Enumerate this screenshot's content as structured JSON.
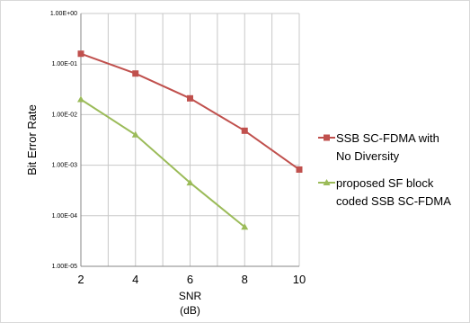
{
  "chart_data": {
    "type": "line",
    "title": "",
    "xlabel_lines": [
      "SNR",
      "(dB)"
    ],
    "ylabel": "Bit Error Rate",
    "x_ticks": [
      "2",
      "4",
      "6",
      "8",
      "10"
    ],
    "y_ticks": [
      "1.00E+00",
      "1.00E-01",
      "1.00E-02",
      "1.00E-03",
      "1.00E-04",
      "1.00E-05"
    ],
    "xlim": [
      2,
      10
    ],
    "ylim": [
      1e-05,
      1
    ],
    "yscale": "log",
    "grid": true,
    "legend_position": "right",
    "series": [
      {
        "name_lines": [
          "SSB SC-FDMA with",
          "No Diversity"
        ],
        "color": "#c0504d",
        "marker": "square",
        "x": [
          2,
          4,
          6,
          8,
          10
        ],
        "y": [
          0.16,
          0.065,
          0.021,
          0.0048,
          0.00082
        ]
      },
      {
        "name_lines": [
          "proposed SF block",
          "coded SSB SC-FDMA"
        ],
        "color": "#9bbb59",
        "marker": "triangle",
        "x": [
          2,
          4,
          6,
          8
        ],
        "y": [
          0.02,
          0.004,
          0.00045,
          6e-05
        ]
      }
    ]
  }
}
